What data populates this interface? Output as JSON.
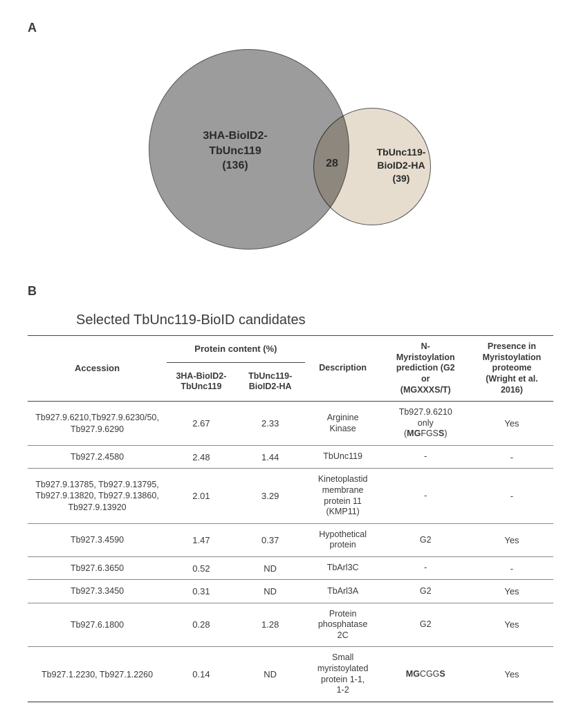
{
  "panels": {
    "A": "A",
    "B": "B"
  },
  "venn": {
    "left": {
      "line1": "3HA-BioID2-",
      "line2": "TbUnc119",
      "count": "(136)",
      "color": "#808080"
    },
    "right": {
      "line1": "TbUnc119-",
      "line2": "BioID2-HA",
      "count": "(39)",
      "color": "#ded2be"
    },
    "overlap": "28"
  },
  "table": {
    "title": "Selected TbUnc119-BioID candidates",
    "headers": {
      "accession": "Accession",
      "protein_content": "Protein content (%)",
      "c1": "3HA-BioID2-\nTbUnc119",
      "c2": "TbUnc119-\nBioID2-HA",
      "description": "Description",
      "myr_pred": "N-\nMyristoylation\nprediction (G2\nor\n(MGXXXS/T)",
      "presence": "Presence in\nMyristoylation\nproteome\n(Wright et al.\n2016)"
    },
    "rows": [
      {
        "accession": "Tb927.9.6210,Tb927.9.6230/50,\nTb927.9.6290",
        "c1": "2.67",
        "c2": "2.33",
        "desc": "Arginine\nKinase",
        "pred_prefix": "Tb927.9.6210\nonly\n(",
        "pred_seq_html": "<span class='seq-bold'>MG</span>FGS<span class='seq-bold'>S</span>",
        "pred_suffix": ")",
        "presence": "Yes"
      },
      {
        "accession": "Tb927.2.4580",
        "c1": "2.48",
        "c2": "1.44",
        "desc": "TbUnc119",
        "pred_plain": "-",
        "presence": "-"
      },
      {
        "accession": "Tb927.9.13785, Tb927.9.13795,\nTb927.9.13820, Tb927.9.13860,\nTb927.9.13920",
        "c1": "2.01",
        "c2": "3.29",
        "desc": "Kinetoplastid\nmembrane\nprotein 11\n(KMP11)",
        "pred_plain": "-",
        "presence": "-"
      },
      {
        "accession": "Tb927.3.4590",
        "c1": "1.47",
        "c2": "0.37",
        "desc": "Hypothetical\nprotein",
        "pred_plain": "G2",
        "presence": "Yes"
      },
      {
        "accession": "Tb927.6.3650",
        "c1": "0.52",
        "c2": "ND",
        "desc": "TbArl3C",
        "pred_plain": "-",
        "presence": "-"
      },
      {
        "accession": "Tb927.3.3450",
        "c1": "0.31",
        "c2": "ND",
        "desc": "TbArl3A",
        "pred_plain": "G2",
        "presence": "Yes"
      },
      {
        "accession": "Tb927.6.1800",
        "c1": "0.28",
        "c2": "1.28",
        "desc": "Protein\nphosphatase\n2C",
        "pred_plain": "G2",
        "presence": "Yes"
      },
      {
        "accession": "Tb927.1.2230, Tb927.1.2260",
        "c1": "0.14",
        "c2": "ND",
        "desc": "Small\nmyristoylated\nprotein 1-1,\n1-2",
        "pred_seq_html": "<span class='seq-bold'>MG</span>CGG<span class='seq-bold'>S</span>",
        "presence": "Yes"
      }
    ]
  }
}
